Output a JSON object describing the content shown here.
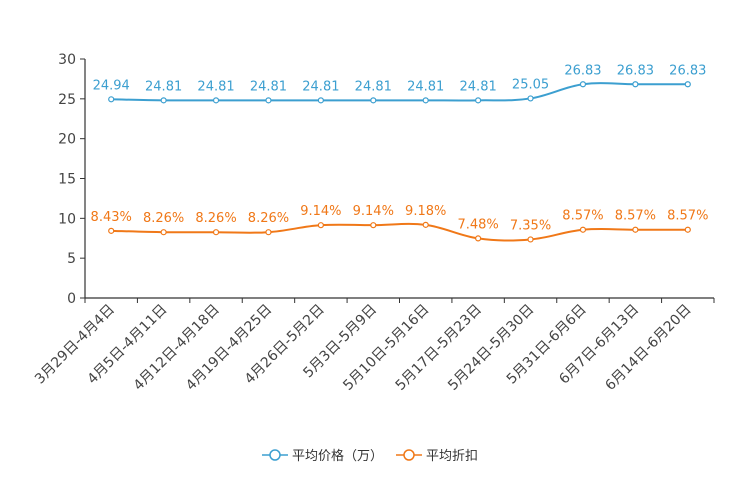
{
  "chart_data": {
    "type": "line",
    "title": "",
    "xlabel": "",
    "ylabel": "",
    "ylim": [
      0,
      30
    ],
    "yticks": [
      0,
      5,
      10,
      15,
      20,
      25,
      30
    ],
    "grid": false,
    "legend_position": "bottom-center",
    "categories": [
      "3月29日-4月4日",
      "4月5日-4月11日",
      "4月12日-4月18日",
      "4月19日-4月25日",
      "4月26日-5月2日",
      "5月3日-5月9日",
      "5月10日-5月16日",
      "5月17日-5月23日",
      "5月24日-5月30日",
      "5月31日-6月6日",
      "6月7日-6月13日",
      "6月14日-6月20日"
    ],
    "series": [
      {
        "name": "平均价格（万）",
        "color": "#3c9fd0",
        "values": [
          24.94,
          24.81,
          24.81,
          24.81,
          24.81,
          24.81,
          24.81,
          24.81,
          25.05,
          26.83,
          26.83,
          26.83
        ],
        "labels": [
          "24.94",
          "24.81",
          "24.81",
          "24.81",
          "24.81",
          "24.81",
          "24.81",
          "24.81",
          "25.05",
          "26.83",
          "26.83",
          "26.83"
        ]
      },
      {
        "name": "平均折扣",
        "color": "#f07818",
        "values": [
          8.43,
          8.26,
          8.26,
          8.26,
          9.14,
          9.14,
          9.18,
          7.48,
          7.35,
          8.57,
          8.57,
          8.57
        ],
        "labels": [
          "8.43%",
          "8.26%",
          "8.26%",
          "8.26%",
          "9.14%",
          "9.14%",
          "9.18%",
          "7.48%",
          "7.35%",
          "8.57%",
          "8.57%",
          "8.57%"
        ]
      }
    ]
  }
}
